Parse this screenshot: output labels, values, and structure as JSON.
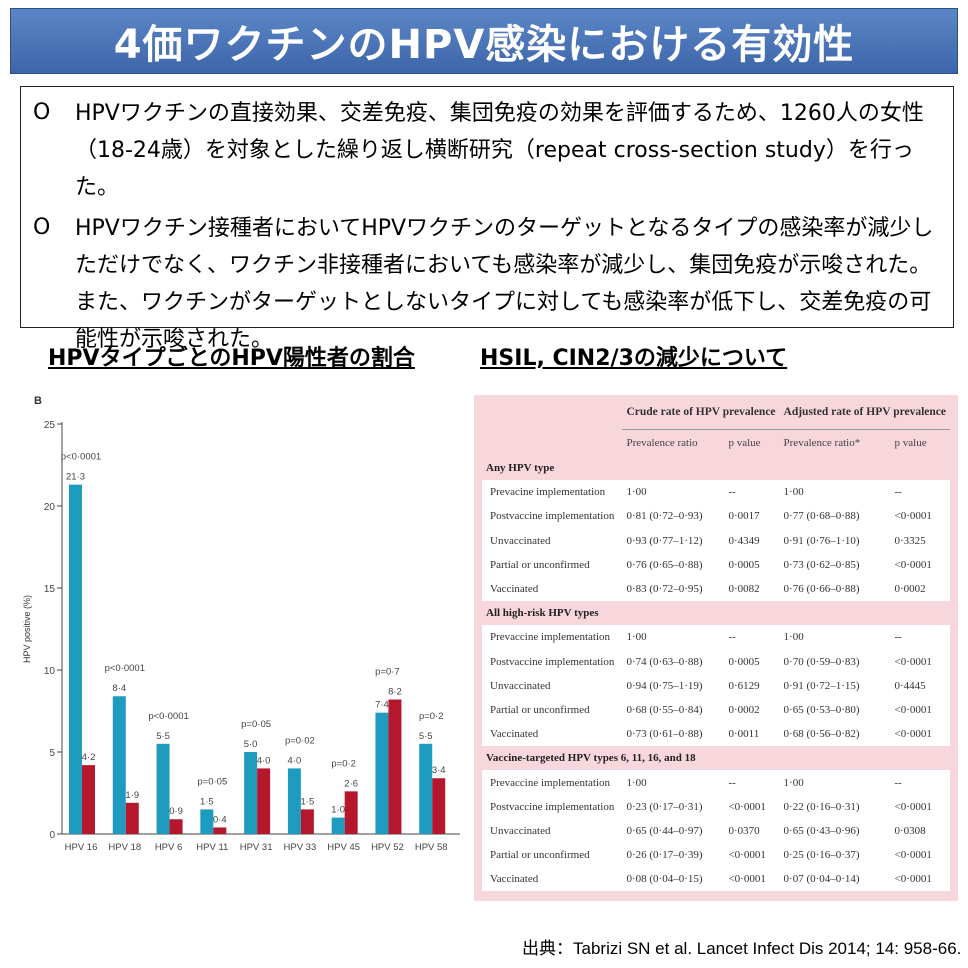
{
  "title": "4価ワクチンのHPV感染における有効性",
  "bullets": [
    {
      "mark": "O",
      "text": "HPVワクチンの直接効果、交差免疫、集団免疫の効果を評価するため、1260人の女性（18-24歳）を対象とした繰り返し横断研究（repeat cross-section study）を行った。"
    },
    {
      "mark": "O",
      "text": "HPVワクチン接種者においてHPVワクチンのターゲットとなるタイプの感染率が減少しただけでなく、ワクチン非接種者においても感染率が減少し、集団免疫が示唆された。また、ワクチンがターゲットとしないタイプに対しても感染率が低下し、交差免疫の可能性が示唆された。"
    }
  ],
  "left_section_title": "HPVタイプごとのHPV陽性者の割合",
  "right_section_title": "HSIL, CIN2/3の減少について",
  "chart_data": {
    "type": "bar",
    "panel_label": "B",
    "ylabel": "HPV positive (%)",
    "ylim": [
      0,
      25
    ],
    "yticks": [
      0,
      5,
      10,
      15,
      20,
      25
    ],
    "categories": [
      "HPV 16",
      "HPV 18",
      "HPV 6",
      "HPV 11",
      "HPV 31",
      "HPV 33",
      "HPV 45",
      "HPV 52",
      "HPV 58"
    ],
    "series": [
      {
        "color": "#1f9bc0",
        "values": [
          21.3,
          8.4,
          5.5,
          1.5,
          5.0,
          4.0,
          1.0,
          7.4,
          5.5
        ],
        "labels": [
          "21·3",
          "8·4",
          "5·5",
          "1·5",
          "5·0",
          "4·0",
          "1·0",
          "7·4",
          "5·5"
        ]
      },
      {
        "color": "#b5182d",
        "values": [
          4.2,
          1.9,
          0.9,
          0.4,
          4.0,
          1.5,
          2.6,
          8.2,
          3.4
        ],
        "labels": [
          "4·2",
          "1·9",
          "0·9",
          "0·4",
          "4·0",
          "1·5",
          "2·6",
          "8·2",
          "3·4"
        ]
      }
    ],
    "pvalues": [
      "p<0·0001",
      "p<0·0001",
      "p<0·0001",
      "p=0·05",
      "p=0·05",
      "p=0·02",
      "p=0·2",
      "p=0·7",
      "p=0·2"
    ],
    "grid": false
  },
  "table": {
    "group_headers": [
      "Crude rate of HPV prevalence",
      "Adjusted rate of HPV prevalence"
    ],
    "sub_headers": [
      "Prevalence ratio",
      "p value",
      "Prevalence ratio*",
      "p value"
    ],
    "sections": [
      {
        "title": "Any HPV type",
        "rows": [
          [
            "Prevacine implementation",
            "1·00",
            "--",
            "1·00",
            "--"
          ],
          [
            "Postvaccine implementation",
            "0·81 (0·72–0·93)",
            "0·0017",
            "0·77 (0·68–0·88)",
            "<0·0001"
          ],
          [
            "Unvaccinated",
            "0·93 (0·77–1·12)",
            "0·4349",
            "0·91 (0·76–1·10)",
            "0·3325"
          ],
          [
            "Partial or unconfirmed",
            "0·76 (0·65–0·88)",
            "0·0005",
            "0·73 (0·62–0·85)",
            "<0·0001"
          ],
          [
            "Vaccinated",
            "0·83 (0·72–0·95)",
            "0·0082",
            "0·76 (0·66–0·88)",
            "0·0002"
          ]
        ]
      },
      {
        "title": "All high-risk HPV types",
        "rows": [
          [
            "Prevaccine implementation",
            "1·00",
            "--",
            "1·00",
            "--"
          ],
          [
            "Postvaccine implementation",
            "0·74 (0·63–0·88)",
            "0·0005",
            "0·70 (0·59–0·83)",
            "<0·0001"
          ],
          [
            "Unvaccinated",
            "0·94 (0·75–1·19)",
            "0·6129",
            "0·91 (0·72–1·15)",
            "0·4445"
          ],
          [
            "Partial or unconfirmed",
            "0·68 (0·55–0·84)",
            "0·0002",
            "0·65 (0·53–0·80)",
            "<0·0001"
          ],
          [
            "Vaccinated",
            "0·73 (0·61–0·88)",
            "0·0011",
            "0·68 (0·56–0·82)",
            "<0·0001"
          ]
        ]
      },
      {
        "title": "Vaccine-targeted HPV types 6, 11, 16, and 18",
        "rows": [
          [
            "Prevaccine implementation",
            "1·00",
            "--",
            "1·00",
            "--"
          ],
          [
            "Postvaccine implementation",
            "0·23 (0·17–0·31)",
            "<0·0001",
            "0·22 (0·16–0·31)",
            "<0·0001"
          ],
          [
            "Unvaccinated",
            "0·65 (0·44–0·97)",
            "0·0370",
            "0·65 (0·43–0·96)",
            "0·0308"
          ],
          [
            "Partial or unconfirmed",
            "0·26 (0·17–0·39)",
            "<0·0001",
            "0·25 (0·16–0·37)",
            "<0·0001"
          ],
          [
            "Vaccinated",
            "0·08 (0·04–0·15)",
            "<0·0001",
            "0·07 (0·04–0·14)",
            "<0·0001"
          ]
        ]
      }
    ]
  },
  "source": "出典：Tabrizi SN et al. Lancet Infect Dis 2014; 14: 958-66."
}
